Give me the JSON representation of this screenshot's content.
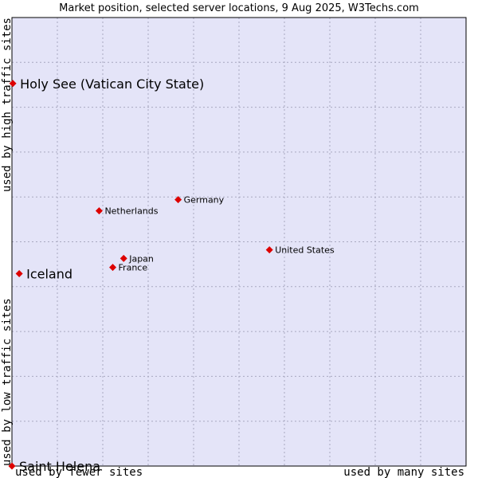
{
  "chart_data": {
    "type": "scatter",
    "title": "Market position, selected server locations, 9 Aug 2025, W3Techs.com",
    "xlabel_left": "used by fewer sites",
    "xlabel_right": "used by many sites",
    "ylabel_bottom": "used by low traffic sites",
    "ylabel_top": "used by high traffic sites",
    "xlim": [
      0,
      100
    ],
    "ylim": [
      0,
      100
    ],
    "grid": true,
    "colors": {
      "background": "#e4e4f8",
      "point": "#dd0000",
      "grid": "#a8a8c0"
    },
    "points": [
      {
        "name": "Holy See (Vatican City State)",
        "x": 0.2,
        "y": 85.3,
        "emphasis": "large"
      },
      {
        "name": "Iceland",
        "x": 1.6,
        "y": 42.9,
        "emphasis": "large"
      },
      {
        "name": "Saint Helena",
        "x": 0.0,
        "y": 0.0,
        "emphasis": "large"
      },
      {
        "name": "Netherlands",
        "x": 19.2,
        "y": 56.9,
        "emphasis": "normal"
      },
      {
        "name": "Germany",
        "x": 36.6,
        "y": 59.4,
        "emphasis": "normal"
      },
      {
        "name": "Japan",
        "x": 24.6,
        "y": 46.3,
        "emphasis": "normal"
      },
      {
        "name": "France",
        "x": 22.2,
        "y": 44.3,
        "emphasis": "normal"
      },
      {
        "name": "United States",
        "x": 56.7,
        "y": 48.2,
        "emphasis": "normal"
      }
    ]
  }
}
